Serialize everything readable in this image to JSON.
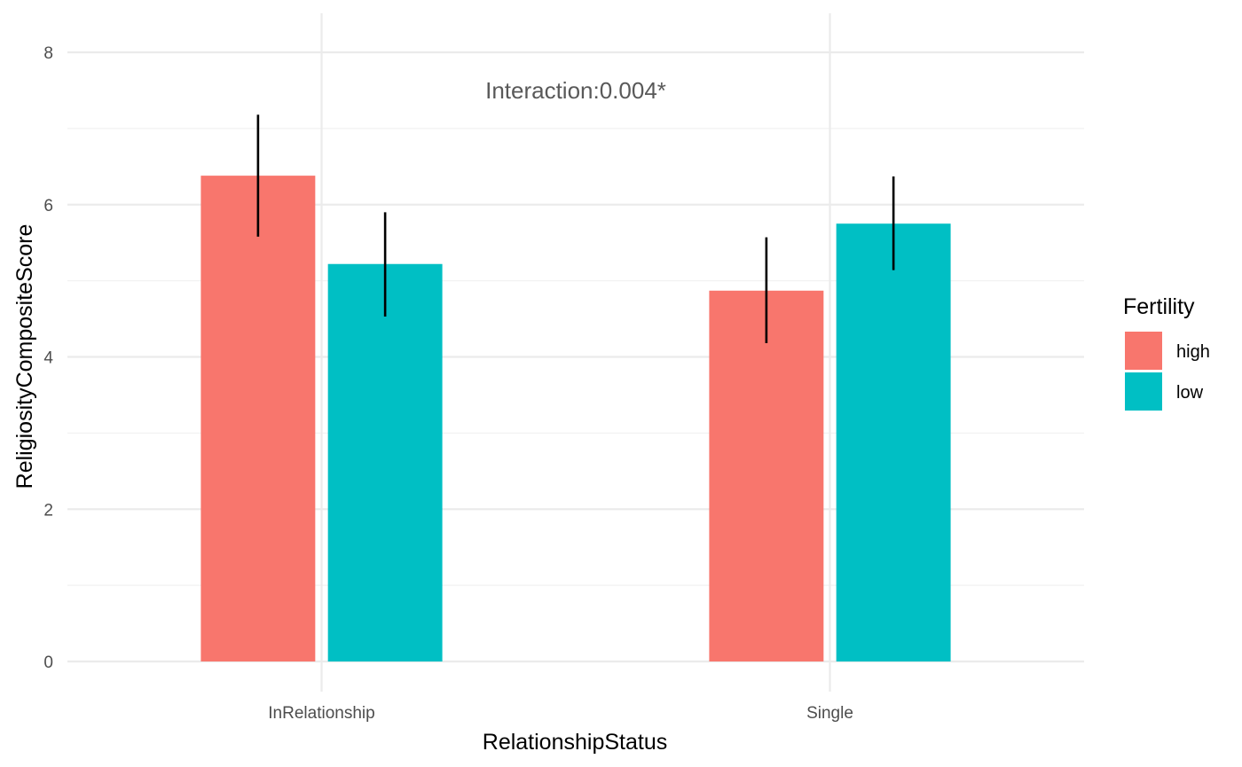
{
  "chart_data": {
    "type": "bar",
    "title": "",
    "xlabel": "RelationshipStatus",
    "ylabel": "ReligiosityCompositeScore",
    "categories": [
      "InRelationship",
      "Single"
    ],
    "ylim": [
      0,
      8
    ],
    "yticks": [
      0,
      2,
      4,
      6,
      8
    ],
    "grid": true,
    "legend": {
      "title": "Fertility",
      "position": "right"
    },
    "series": [
      {
        "name": "high",
        "color": "#F8766D",
        "values": [
          6.38,
          4.87
        ],
        "err_low": [
          5.58,
          4.18
        ],
        "err_high": [
          7.18,
          5.57
        ]
      },
      {
        "name": "low",
        "color": "#00BFC4",
        "values": [
          5.22,
          5.75
        ],
        "err_low": [
          4.53,
          5.14
        ],
        "err_high": [
          5.9,
          6.37
        ]
      }
    ],
    "annotations": [
      {
        "text": "Interaction:0.004*",
        "x": 1.5,
        "y": 7.5
      }
    ]
  }
}
